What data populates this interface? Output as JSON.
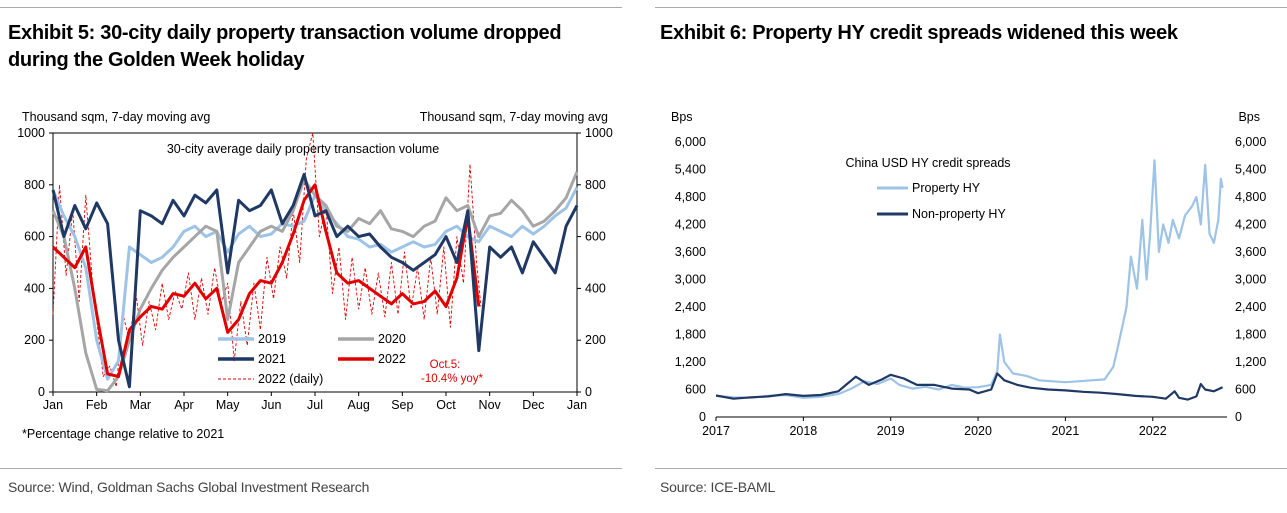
{
  "exhibit5": {
    "title": "Exhibit 5: 30-city daily property transaction volume dropped during the Golden Week holiday",
    "source": "Source: Wind, Goldman Sachs Global Investment Research",
    "footnote": "*Percentage change relative to 2021",
    "chart_data": {
      "type": "line",
      "title": "30-city average daily property transaction volume",
      "ylabel_left": "Thousand sqm, 7-day moving avg",
      "ylabel_right": "Thousand sqm, 7-day moving avg",
      "ylim": [
        0,
        1000
      ],
      "yticks": [
        "0",
        "200",
        "400",
        "600",
        "800",
        "1000"
      ],
      "xticks": [
        "Jan",
        "Feb",
        "Mar",
        "Apr",
        "May",
        "Jun",
        "Jul",
        "Aug",
        "Sep",
        "Oct",
        "Nov",
        "Dec",
        "Jan"
      ],
      "annotation": "Oct.5:\n-10.4% yoy*",
      "annotation_lines": [
        "Oct.5:",
        "-10.4% yoy*"
      ],
      "series": [
        {
          "name": "2019",
          "color": "#9dc3e6",
          "x": [
            0,
            0.25,
            0.5,
            0.75,
            1,
            1.25,
            1.5,
            1.75,
            2,
            2.25,
            2.5,
            2.75,
            3,
            3.25,
            3.5,
            3.75,
            4,
            4.25,
            4.5,
            4.75,
            5,
            5.25,
            5.5,
            5.75,
            6,
            6.25,
            6.5,
            6.75,
            7,
            7.25,
            7.5,
            7.75,
            8,
            8.25,
            8.5,
            8.75,
            9,
            9.25,
            9.5,
            9.75,
            10,
            10.25,
            10.5,
            10.75,
            11,
            11.25,
            11.5,
            11.75,
            12
          ],
          "values": [
            780,
            680,
            600,
            480,
            200,
            50,
            120,
            560,
            530,
            500,
            520,
            560,
            620,
            640,
            600,
            620,
            540,
            610,
            640,
            600,
            610,
            650,
            640,
            660,
            760,
            700,
            650,
            600,
            590,
            560,
            570,
            540,
            560,
            580,
            560,
            570,
            620,
            640,
            600,
            580,
            640,
            620,
            600,
            640,
            610,
            640,
            680,
            710,
            790
          ]
        },
        {
          "name": "2020",
          "color": "#a6a6a6",
          "x": [
            0,
            0.25,
            0.5,
            0.75,
            1,
            1.25,
            1.5,
            1.75,
            2,
            2.25,
            2.5,
            2.75,
            3,
            3.25,
            3.5,
            3.75,
            4,
            4.25,
            4.5,
            4.75,
            5,
            5.25,
            5.5,
            5.75,
            6,
            6.25,
            6.5,
            6.75,
            7,
            7.25,
            7.5,
            7.75,
            8,
            8.25,
            8.5,
            8.75,
            9,
            9.25,
            9.5,
            9.75,
            10,
            10.25,
            10.5,
            10.75,
            11,
            11.25,
            11.5,
            11.75,
            12
          ],
          "values": [
            700,
            600,
            400,
            150,
            10,
            5,
            60,
            200,
            320,
            400,
            470,
            520,
            560,
            600,
            640,
            620,
            280,
            500,
            560,
            620,
            640,
            620,
            700,
            820,
            760,
            720,
            640,
            620,
            670,
            650,
            700,
            630,
            620,
            600,
            640,
            660,
            750,
            700,
            720,
            600,
            680,
            690,
            740,
            700,
            640,
            660,
            700,
            750,
            850
          ]
        },
        {
          "name": "2021",
          "color": "#1f3864",
          "x": [
            0,
            0.25,
            0.5,
            0.75,
            1,
            1.25,
            1.5,
            1.75,
            2,
            2.25,
            2.5,
            2.75,
            3,
            3.25,
            3.5,
            3.75,
            4,
            4.25,
            4.5,
            4.75,
            5,
            5.25,
            5.5,
            5.75,
            6,
            6.25,
            6.5,
            6.75,
            7,
            7.25,
            7.5,
            7.75,
            8,
            8.25,
            8.5,
            8.75,
            9,
            9.25,
            9.5,
            9.75,
            10,
            10.25,
            10.5,
            10.75,
            11,
            11.25,
            11.5,
            11.75,
            12
          ],
          "values": [
            780,
            600,
            720,
            630,
            730,
            650,
            200,
            20,
            700,
            680,
            650,
            740,
            680,
            760,
            730,
            780,
            460,
            740,
            700,
            720,
            780,
            650,
            720,
            840,
            680,
            700,
            600,
            640,
            600,
            610,
            560,
            520,
            500,
            470,
            500,
            530,
            600,
            500,
            700,
            160,
            560,
            520,
            560,
            460,
            580,
            520,
            460,
            640,
            720
          ]
        },
        {
          "name": "2022",
          "color": "#e00000",
          "x": [
            0,
            0.25,
            0.5,
            0.75,
            1,
            1.25,
            1.5,
            1.75,
            2,
            2.25,
            2.5,
            2.75,
            3,
            3.25,
            3.5,
            3.75,
            4,
            4.25,
            4.5,
            4.75,
            5,
            5.25,
            5.5,
            5.75,
            6,
            6.25,
            6.5,
            6.75,
            7,
            7.25,
            7.5,
            7.75,
            8,
            8.25,
            8.5,
            8.75,
            9,
            9.25,
            9.5,
            9.75
          ],
          "values": [
            560,
            520,
            480,
            560,
            300,
            70,
            60,
            240,
            290,
            330,
            320,
            380,
            370,
            420,
            360,
            400,
            230,
            280,
            380,
            430,
            420,
            500,
            610,
            740,
            800,
            620,
            460,
            420,
            430,
            400,
            370,
            340,
            380,
            340,
            350,
            390,
            330,
            440,
            680,
            330
          ]
        },
        {
          "name": "2022 (daily)",
          "color": "#e00000",
          "dashed": true,
          "x": [
            0,
            0.15,
            0.3,
            0.45,
            0.6,
            0.75,
            0.9,
            1,
            1.15,
            1.3,
            1.45,
            1.6,
            1.75,
            1.9,
            2.05,
            2.2,
            2.35,
            2.5,
            2.65,
            2.8,
            2.95,
            3.1,
            3.25,
            3.4,
            3.55,
            3.7,
            3.85,
            4,
            4.15,
            4.3,
            4.45,
            4.6,
            4.75,
            4.9,
            5.05,
            5.2,
            5.35,
            5.5,
            5.65,
            5.8,
            5.95,
            6.1,
            6.25,
            6.4,
            6.55,
            6.7,
            6.85,
            7,
            7.15,
            7.3,
            7.45,
            7.6,
            7.75,
            7.9,
            8.05,
            8.2,
            8.35,
            8.5,
            8.65,
            8.8,
            8.95,
            9.1,
            9.25,
            9.4,
            9.55,
            9.7,
            9.8
          ],
          "values": [
            300,
            800,
            450,
            700,
            350,
            760,
            430,
            280,
            60,
            100,
            20,
            300,
            200,
            380,
            180,
            350,
            240,
            420,
            280,
            390,
            320,
            460,
            280,
            440,
            300,
            480,
            340,
            420,
            120,
            350,
            180,
            420,
            240,
            520,
            360,
            560,
            440,
            700,
            500,
            900,
            1000,
            600,
            720,
            380,
            560,
            280,
            520,
            320,
            480,
            300,
            460,
            290,
            500,
            300,
            540,
            320,
            480,
            280,
            520,
            300,
            560,
            250,
            600,
            420,
            880,
            500,
            330
          ]
        }
      ]
    }
  },
  "exhibit6": {
    "title": "Exhibit 6: Property HY credit spreads widened this week",
    "source": "Source: ICE-BAML",
    "chart_data": {
      "type": "line",
      "title": "China USD HY credit spreads",
      "ylabel_left": "Bps",
      "ylabel_right": "Bps",
      "ylim": [
        0,
        6000
      ],
      "yticks": [
        "0",
        "600",
        "1,200",
        "1,800",
        "2,400",
        "3,000",
        "3,600",
        "4,200",
        "4,800",
        "5,400",
        "6,000"
      ],
      "xticks": [
        "2017",
        "2018",
        "2019",
        "2020",
        "2021",
        "2022"
      ],
      "xlim": [
        2017,
        2022.85
      ],
      "series": [
        {
          "name": "Property HY",
          "color": "#9dc3e6",
          "x": [
            2017,
            2017.2,
            2017.4,
            2017.6,
            2017.8,
            2018,
            2018.2,
            2018.4,
            2018.55,
            2018.7,
            2018.85,
            2019,
            2019.1,
            2019.25,
            2019.4,
            2019.55,
            2019.7,
            2019.85,
            2020,
            2020.15,
            2020.22,
            2020.25,
            2020.3,
            2020.4,
            2020.55,
            2020.7,
            2020.85,
            2021,
            2021.15,
            2021.3,
            2021.45,
            2021.55,
            2021.62,
            2021.7,
            2021.75,
            2021.82,
            2021.88,
            2021.93,
            2021.97,
            2022.02,
            2022.07,
            2022.12,
            2022.18,
            2022.23,
            2022.3,
            2022.37,
            2022.45,
            2022.5,
            2022.55,
            2022.6,
            2022.65,
            2022.7,
            2022.75,
            2022.78,
            2022.8
          ],
          "values": [
            460,
            430,
            420,
            460,
            480,
            420,
            440,
            500,
            620,
            780,
            720,
            840,
            700,
            620,
            660,
            600,
            700,
            640,
            650,
            700,
            1000,
            1800,
            1200,
            950,
            900,
            800,
            780,
            760,
            780,
            800,
            820,
            1100,
            1700,
            2400,
            3500,
            2800,
            4300,
            3000,
            4000,
            5600,
            3600,
            4200,
            3800,
            4300,
            3900,
            4400,
            4600,
            4800,
            4200,
            5500,
            4000,
            3800,
            4300,
            5200,
            5000
          ]
        },
        {
          "name": "Non-property HY",
          "color": "#1f3864",
          "x": [
            2017,
            2017.2,
            2017.4,
            2017.6,
            2017.8,
            2018,
            2018.2,
            2018.4,
            2018.5,
            2018.6,
            2018.75,
            2018.9,
            2019,
            2019.15,
            2019.3,
            2019.5,
            2019.7,
            2019.9,
            2020,
            2020.15,
            2020.22,
            2020.3,
            2020.45,
            2020.6,
            2020.8,
            2021,
            2021.2,
            2021.4,
            2021.6,
            2021.8,
            2022,
            2022.15,
            2022.25,
            2022.3,
            2022.4,
            2022.5,
            2022.55,
            2022.6,
            2022.7,
            2022.8
          ],
          "values": [
            470,
            400,
            430,
            450,
            500,
            460,
            480,
            560,
            720,
            880,
            700,
            820,
            920,
            840,
            700,
            700,
            620,
            600,
            520,
            600,
            950,
            800,
            700,
            640,
            600,
            580,
            550,
            530,
            500,
            460,
            440,
            400,
            560,
            420,
            380,
            450,
            720,
            600,
            560,
            650
          ]
        }
      ]
    }
  }
}
